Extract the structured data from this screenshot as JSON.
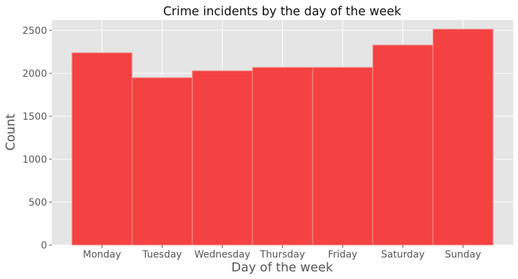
{
  "chart_data": {
    "type": "bar",
    "title": "Crime incidents by the day of the week",
    "xlabel": "Day of the week",
    "ylabel": "Count",
    "categories": [
      "Monday",
      "Tuesday",
      "Wednesday",
      "Thursday",
      "Friday",
      "Saturday",
      "Sunday"
    ],
    "values": [
      2240,
      1950,
      2030,
      2070,
      2070,
      2330,
      2515
    ],
    "ylim": [
      0,
      2620
    ],
    "yticks": [
      0,
      500,
      1000,
      1500,
      2000,
      2500
    ],
    "grid": true,
    "style": "ggplot",
    "colors": {
      "bar": "#f44242",
      "bar_edge": "#f0a0a0",
      "plot_background": "#e5e5e5",
      "grid": "#ffffff"
    }
  }
}
